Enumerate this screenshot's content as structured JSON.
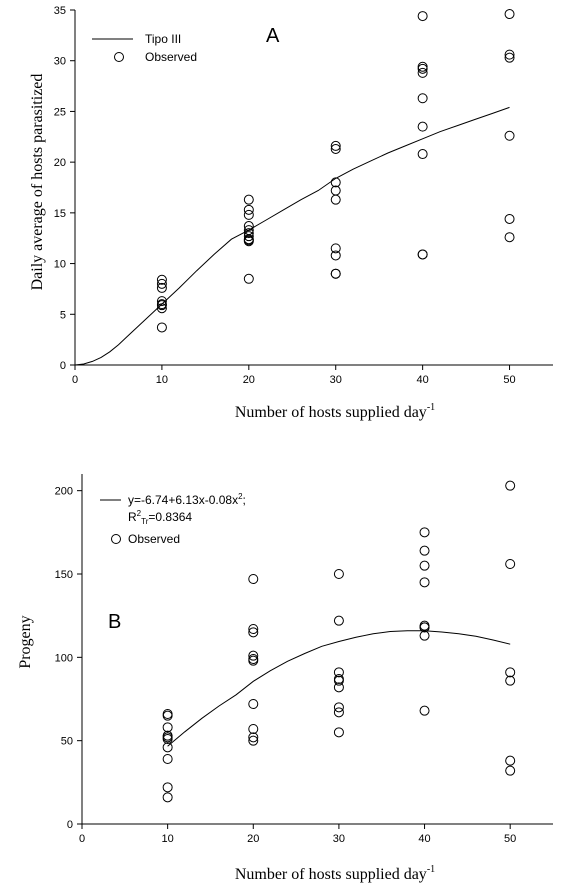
{
  "chart_data": [
    {
      "type": "scatter",
      "panel_label": "A",
      "xlabel": "Number of hosts supplied day",
      "xlabel_sup": "-1",
      "ylabel": "Daily average of hosts parasitized",
      "xlim": [
        0,
        55
      ],
      "ylim": [
        0,
        35
      ],
      "x_ticks": [
        0,
        10,
        20,
        30,
        40,
        50
      ],
      "y_ticks": [
        0,
        5,
        10,
        15,
        20,
        25,
        30,
        35
      ],
      "legend": {
        "position": "top-left",
        "line_label": "Tipo III",
        "points_label": "Observed"
      },
      "series": [
        {
          "name": "Tipo III",
          "kind": "line",
          "x": [
            0,
            1,
            2,
            3,
            4,
            5,
            6,
            7,
            8,
            9,
            10,
            12,
            14,
            16,
            18,
            20,
            22,
            24,
            26,
            28,
            30,
            32,
            34,
            36,
            38,
            40,
            42,
            44,
            46,
            48,
            50
          ],
          "y": [
            0,
            0.1,
            0.35,
            0.75,
            1.3,
            2.0,
            2.8,
            3.6,
            4.4,
            5.2,
            6.0,
            7.6,
            9.3,
            10.9,
            12.4,
            13.3,
            14.3,
            15.3,
            16.3,
            17.2,
            18.4,
            19.3,
            20.1,
            20.9,
            21.6,
            22.3,
            23.0,
            23.6,
            24.2,
            24.8,
            25.4
          ]
        },
        {
          "name": "Observed",
          "kind": "points",
          "x": [
            10,
            10,
            10,
            10,
            10,
            10,
            10,
            10,
            20,
            20,
            20,
            20,
            20,
            20,
            20,
            20,
            20,
            20,
            20,
            30,
            30,
            30,
            30,
            30,
            30,
            30,
            30,
            30,
            40,
            40,
            40,
            40,
            40,
            40,
            40,
            40,
            40,
            50,
            50,
            50,
            50,
            50,
            50
          ],
          "y": [
            8.4,
            8.0,
            7.6,
            6.3,
            6.0,
            5.9,
            5.6,
            3.7,
            16.3,
            15.3,
            14.8,
            13.7,
            13.3,
            13.0,
            12.7,
            12.4,
            12.3,
            12.2,
            8.5,
            21.6,
            21.3,
            18.0,
            17.2,
            16.3,
            11.5,
            10.8,
            9.0,
            9.0,
            34.4,
            29.4,
            29.2,
            28.8,
            26.3,
            23.5,
            20.8,
            10.9,
            10.9,
            34.6,
            30.6,
            30.3,
            22.6,
            14.4,
            12.6
          ]
        }
      ]
    },
    {
      "type": "scatter",
      "panel_label": "B",
      "xlabel": "Number of hosts supplied day",
      "xlabel_sup": "-1",
      "ylabel": "Progeny",
      "xlim": [
        0,
        55
      ],
      "ylim": [
        0,
        210
      ],
      "x_ticks": [
        0,
        10,
        20,
        30,
        40,
        50
      ],
      "y_ticks": [
        0,
        50,
        100,
        150,
        200
      ],
      "legend": {
        "position": "top-left",
        "line_label": "y=-6.74+6.13x-0.08x",
        "line_label_sup": "2",
        "line_label_end": ";",
        "r2_prefix": "R",
        "r2_sup": "2",
        "r2_sub": "Tr",
        "r2_value": "=0.8364",
        "points_label": "Observed"
      },
      "series": [
        {
          "name": "y=-6.74+6.13x-0.08x2",
          "kind": "line",
          "x": [
            10,
            12,
            14,
            16,
            18,
            20,
            22,
            24,
            26,
            28,
            30,
            32,
            34,
            36,
            38,
            40,
            42,
            44,
            46,
            48,
            50
          ],
          "y": [
            46.6,
            55.3,
            63.4,
            70.8,
            77.5,
            85.6,
            92.0,
            97.6,
            102.3,
            106.6,
            109.5,
            112.0,
            114.2,
            115.5,
            116.0,
            116.0,
            115.2,
            114.1,
            112.6,
            110.4,
            107.9
          ]
        },
        {
          "name": "Observed",
          "kind": "points",
          "x": [
            10,
            10,
            10,
            10,
            10,
            10,
            10,
            10,
            10,
            10,
            20,
            20,
            20,
            20,
            20,
            20,
            20,
            20,
            20,
            20,
            30,
            30,
            30,
            30,
            30,
            30,
            30,
            30,
            30,
            40,
            40,
            40,
            40,
            40,
            40,
            40,
            40,
            40,
            50,
            50,
            50,
            50,
            50,
            50
          ],
          "y": [
            66,
            65,
            58,
            53,
            51,
            46,
            39,
            22,
            16,
            52,
            147,
            117,
            115,
            101,
            99,
            98,
            72,
            57,
            52,
            50,
            150,
            122,
            91,
            87,
            82,
            70,
            67,
            55,
            86,
            175,
            164,
            155,
            145,
            119,
            118,
            113,
            68,
            118,
            203,
            156,
            91,
            86,
            38,
            32
          ]
        }
      ]
    }
  ]
}
